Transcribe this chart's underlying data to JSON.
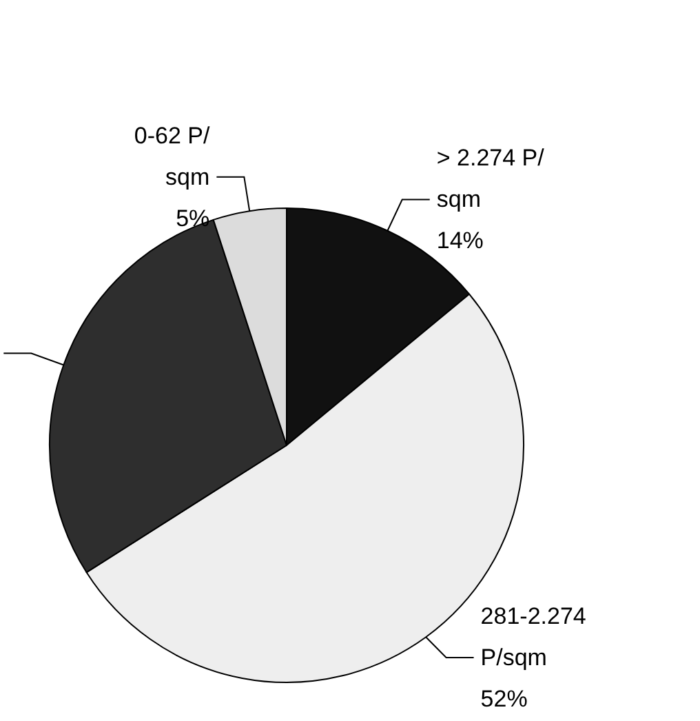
{
  "chart_data": {
    "type": "pie",
    "categories": [
      "> 2.274 P/sqm",
      "281-2.274 P/sqm",
      null,
      "0-62 P/sqm"
    ],
    "values": [
      14,
      52,
      29,
      5
    ],
    "colors": [
      "#111111",
      "#eeeeee",
      "#2e2e2e",
      "#dcdcdc"
    ],
    "value_labels": [
      "14%",
      "52%",
      null,
      "5%"
    ],
    "legend": false
  }
}
